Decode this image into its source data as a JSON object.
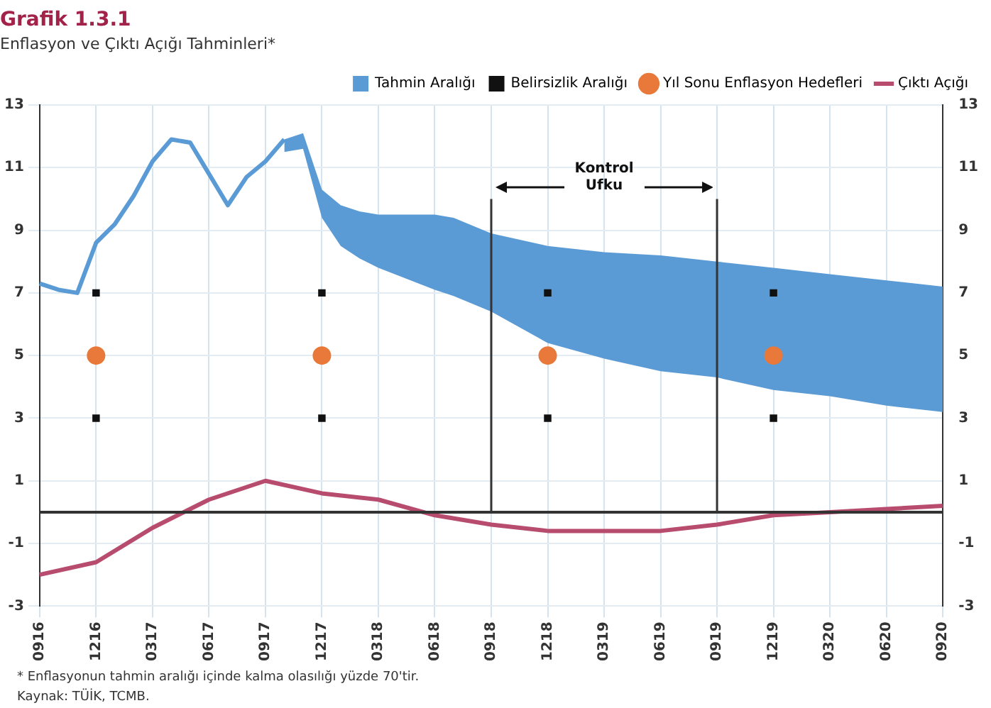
{
  "chart_data": {
    "type": "line",
    "title": "Grafik 1.3.1",
    "subtitle": "Enflasyon ve Çıktı Açığı Tahminleri*",
    "categories": [
      "0916",
      null,
      null,
      "1216",
      null,
      null,
      "0317",
      null,
      null,
      "0617",
      null,
      null,
      "0917",
      null,
      null,
      "1217",
      null,
      null,
      "0318",
      null,
      null,
      "0618",
      null,
      null,
      "0918",
      null,
      null,
      "1218",
      null,
      null,
      "0319",
      null,
      null,
      "0619",
      null,
      null,
      "0919",
      null,
      null,
      "1219",
      null,
      null,
      "0320",
      null,
      null,
      "0620",
      null,
      null,
      "0920"
    ],
    "series": [
      {
        "name": "Tahmin Aralığı",
        "type": "line",
        "color": "#5b9bd5",
        "values": [
          7.3,
          7.1,
          7.0,
          8.6,
          9.2,
          10.1,
          11.2,
          11.9,
          11.8,
          10.8,
          9.8,
          10.7,
          11.2,
          11.9,
          null,
          null,
          null,
          null,
          null,
          null,
          null,
          null,
          null,
          null,
          null,
          null,
          null,
          null,
          null,
          null,
          null,
          null,
          null,
          null,
          null,
          null,
          null,
          null,
          null,
          null,
          null,
          null,
          null,
          null,
          null,
          null,
          null,
          null,
          null
        ],
        "lower": [
          null,
          null,
          null,
          null,
          null,
          null,
          null,
          null,
          null,
          null,
          null,
          null,
          null,
          11.5,
          11.6,
          9.4,
          8.5,
          8.1,
          7.8,
          null,
          null,
          7.1,
          6.9,
          null,
          6.4,
          null,
          null,
          5.4,
          null,
          null,
          4.9,
          null,
          null,
          4.5,
          null,
          null,
          4.3,
          null,
          null,
          3.9,
          null,
          null,
          3.7,
          null,
          null,
          3.4,
          null,
          null,
          3.2
        ],
        "upper": [
          null,
          null,
          null,
          null,
          null,
          null,
          null,
          null,
          null,
          null,
          null,
          null,
          null,
          11.9,
          12.1,
          10.3,
          9.8,
          9.6,
          9.5,
          null,
          null,
          9.5,
          9.4,
          null,
          8.9,
          null,
          null,
          8.5,
          null,
          null,
          8.3,
          null,
          null,
          8.2,
          null,
          null,
          8.0,
          null,
          null,
          7.8,
          null,
          null,
          7.6,
          null,
          null,
          7.4,
          null,
          null,
          7.2
        ]
      },
      {
        "name": "Belirsizlik Aralığı",
        "type": "scatter",
        "color": "#111111",
        "marker": "square",
        "values": [
          null,
          null,
          null,
          7,
          null,
          null,
          null,
          null,
          null,
          null,
          null,
          null,
          null,
          null,
          null,
          7,
          null,
          null,
          null,
          null,
          null,
          null,
          null,
          null,
          null,
          null,
          null,
          7,
          null,
          null,
          null,
          null,
          null,
          null,
          null,
          null,
          null,
          null,
          null,
          7,
          null,
          null,
          null,
          null,
          null,
          null,
          null,
          null,
          null
        ]
      },
      {
        "type": "scatter",
        "color": "#111111",
        "marker": "square",
        "values": [
          null,
          null,
          null,
          3,
          null,
          null,
          null,
          null,
          null,
          null,
          null,
          null,
          null,
          null,
          null,
          3,
          null,
          null,
          null,
          null,
          null,
          null,
          null,
          null,
          null,
          null,
          null,
          3,
          null,
          null,
          null,
          null,
          null,
          null,
          null,
          null,
          null,
          null,
          null,
          3,
          null,
          null,
          null,
          null,
          null,
          null,
          null,
          null,
          null
        ]
      },
      {
        "name": "Yıl Sonu Enflasyon Hedefleri",
        "type": "scatter",
        "color": "#e8793a",
        "marker": "circle",
        "values": [
          null,
          null,
          null,
          5,
          null,
          null,
          null,
          null,
          null,
          null,
          null,
          null,
          null,
          null,
          null,
          5,
          null,
          null,
          null,
          null,
          null,
          null,
          null,
          null,
          null,
          null,
          null,
          5,
          null,
          null,
          null,
          null,
          null,
          null,
          null,
          null,
          null,
          null,
          null,
          5,
          null,
          null,
          null,
          null,
          null,
          null,
          null,
          null,
          null
        ]
      },
      {
        "name": "Çıktı Açığı",
        "type": "line",
        "color": "#b84c6e",
        "values": [
          -2.0,
          null,
          null,
          -1.6,
          null,
          null,
          -0.5,
          null,
          null,
          0.4,
          null,
          null,
          1.0,
          null,
          null,
          0.6,
          null,
          null,
          0.4,
          null,
          null,
          -0.1,
          null,
          null,
          -0.4,
          null,
          null,
          -0.6,
          null,
          null,
          -0.6,
          null,
          null,
          -0.6,
          null,
          null,
          -0.4,
          null,
          null,
          -0.1,
          null,
          null,
          0.0,
          null,
          null,
          0.1,
          null,
          null,
          0.2
        ]
      }
    ],
    "ylim": [
      -3,
      13
    ],
    "yticks": [
      -3,
      -1,
      1,
      3,
      5,
      7,
      9,
      11,
      13
    ],
    "y2lim": [
      -3,
      13
    ],
    "y2ticks": [
      -3,
      -1,
      1,
      3,
      5,
      7,
      9,
      11,
      13
    ],
    "grid": true,
    "legend": "top",
    "marker": "none",
    "ref_lines": [
      {
        "axis": "y",
        "value": 0,
        "color": "#333333"
      },
      {
        "axis": "x",
        "value": "0918",
        "color": "#333333"
      },
      {
        "axis": "x",
        "value": "0919",
        "color": "#333333"
      }
    ],
    "annotations": [
      "Kontrol Ufku",
      "* Enflasyonun tahmin aralığı içinde kalma olasılığı yüzde 70'tir.",
      "Kaynak: TÜİK, TCMB."
    ]
  }
}
